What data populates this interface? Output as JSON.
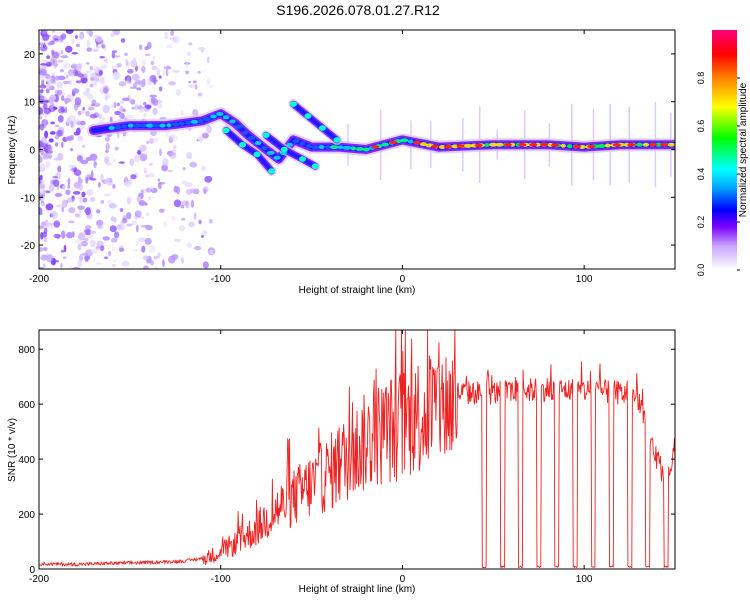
{
  "figure": {
    "title": "S196.2026.078.01.27.R12"
  },
  "chart_data": [
    {
      "type": "heatmap",
      "title": "S196.2026.078.01.27.R12",
      "xlabel": "Height of straight line (km)",
      "ylabel": "Frequency (Hz)",
      "xlim": [
        -200,
        150
      ],
      "ylim": [
        -25,
        25
      ],
      "xticks": [
        -200,
        -100,
        0,
        100
      ],
      "yticks": [
        -20,
        -10,
        0,
        10,
        20
      ],
      "colorbar": {
        "label": "Normalized spectral amplitude",
        "range": [
          0,
          1
        ],
        "ticks": [
          0.0,
          0.2,
          0.4,
          0.6,
          0.8
        ],
        "tick_labels": [
          "0.0",
          "0.2",
          "0.4",
          "0.6",
          "0.8"
        ],
        "colors": [
          "#ffffff",
          "#7a00ff",
          "#0000ff",
          "#00ffff",
          "#00ff00",
          "#ffff00",
          "#ff8000",
          "#ff0000",
          "#ff0080"
        ]
      },
      "ridges": [
        {
          "name": "main-ridge",
          "points": [
            [
              -170,
              4
            ],
            [
              -150,
              5
            ],
            [
              -130,
              5
            ],
            [
              -110,
              6
            ],
            [
              -100,
              7.5
            ],
            [
              -92,
              5.5
            ],
            [
              -85,
              3
            ],
            [
              -75,
              0
            ],
            [
              -68,
              -2
            ],
            [
              -60,
              2
            ],
            [
              -50,
              0.5
            ],
            [
              -35,
              0.5
            ],
            [
              -20,
              0
            ],
            [
              0,
              2
            ],
            [
              20,
              0.5
            ],
            [
              50,
              1
            ],
            [
              80,
              1
            ],
            [
              100,
              0.5
            ],
            [
              120,
              1
            ],
            [
              150,
              1
            ]
          ]
        },
        {
          "name": "branch-1",
          "points": [
            [
              -97,
              4
            ],
            [
              -88,
              1
            ],
            [
              -80,
              -1
            ],
            [
              -72,
              -4.5
            ]
          ]
        },
        {
          "name": "branch-2",
          "points": [
            [
              -60,
              9.5
            ],
            [
              -52,
              7
            ],
            [
              -44,
              4.5
            ],
            [
              -36,
              2
            ]
          ]
        },
        {
          "name": "branch-3",
          "points": [
            [
              -75,
              3
            ],
            [
              -65,
              0
            ],
            [
              -55,
              -2
            ],
            [
              -48,
              -3.5
            ]
          ]
        }
      ]
    },
    {
      "type": "line",
      "title": "",
      "xlabel": "Height of straight line (km)",
      "ylabel": "SNR (10 * v/v)",
      "xlim": [
        -200,
        150
      ],
      "ylim": [
        0,
        870
      ],
      "xticks": [
        -200,
        -100,
        0,
        100
      ],
      "yticks": [
        0,
        200,
        400,
        600,
        800
      ],
      "series": [
        {
          "name": "SNR",
          "color": "#ee2222",
          "x": [
            -200,
            -180,
            -160,
            -140,
            -120,
            -110,
            -100,
            -90,
            -80,
            -70,
            -60,
            -50,
            -40,
            -30,
            -20,
            -10,
            0,
            10,
            20,
            30,
            40,
            50,
            60,
            70,
            80,
            90,
            100,
            110,
            120,
            125,
            130,
            135,
            140,
            145,
            150
          ],
          "values": [
            20,
            18,
            22,
            25,
            30,
            40,
            70,
            110,
            160,
            230,
            280,
            330,
            380,
            440,
            500,
            540,
            570,
            610,
            640,
            650,
            650,
            650,
            655,
            660,
            665,
            660,
            660,
            655,
            650,
            640,
            630,
            520,
            400,
            350,
            420
          ],
          "dropouts_km": [
            45,
            55,
            65,
            75,
            85,
            95,
            105,
            115,
            125,
            135,
            145
          ]
        }
      ]
    }
  ]
}
